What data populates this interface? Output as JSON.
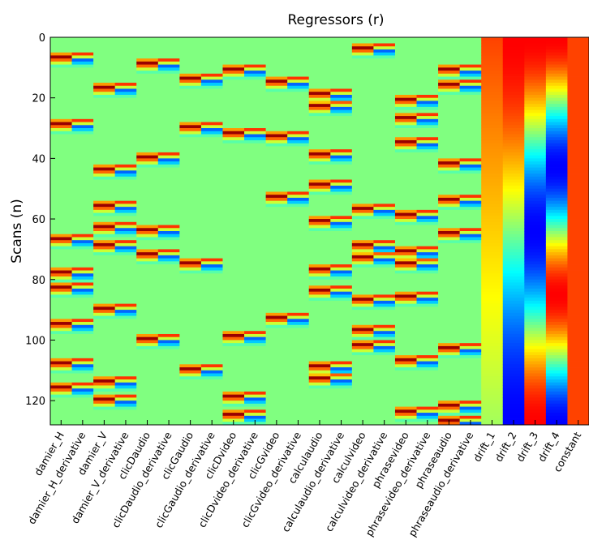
{
  "chart_data": {
    "type": "heatmap",
    "title": "Regressors (r)",
    "ylabel": "Scans (n)",
    "xlabel": "",
    "ylim": [
      0,
      128
    ],
    "y_ticks": [
      0,
      20,
      40,
      60,
      80,
      100,
      120
    ],
    "y_tick_labels": [
      "0",
      "20",
      "40",
      "60",
      "80",
      "100",
      "120"
    ],
    "colormap": "jet",
    "value_range": [
      -1,
      1
    ],
    "columns": [
      "damier_H",
      "damier_H_derivative",
      "damier_V",
      "damier_V_derivative",
      "clicDaudio",
      "clicDaudio_derivative",
      "clicGaudio",
      "clicGaudio_derivative",
      "clicDvideo",
      "clicDvideo_derivative",
      "clicGvideo",
      "clicGvideo_derivative",
      "calculaudio",
      "calculaudio_derivative",
      "calculvideo",
      "calculvideo_derivative",
      "phrasevideo",
      "phrasevideo_derivative",
      "phraseaudio",
      "phraseaudio_derivative",
      "drift_1",
      "drift_2",
      "drift_3",
      "drift_4",
      "constant"
    ],
    "event_onsets": {
      "damier_H": [
        5,
        27,
        65,
        76,
        81,
        93,
        106,
        114
      ],
      "damier_V": [
        15,
        42,
        54,
        61,
        67,
        88,
        112,
        118
      ],
      "clicDaudio": [
        7,
        38,
        62,
        70,
        98
      ],
      "clicGaudio": [
        12,
        28,
        73,
        108
      ],
      "clicDvideo": [
        9,
        30,
        97,
        117,
        123
      ],
      "clicGvideo": [
        13,
        31,
        51,
        91
      ],
      "calculaudio": [
        17,
        21,
        37,
        47,
        59,
        75,
        82,
        107,
        111
      ],
      "calculvideo": [
        2,
        55,
        67,
        71,
        85,
        95,
        100
      ],
      "phrasevideo": [
        19,
        25,
        33,
        57,
        69,
        73,
        84,
        105,
        122
      ],
      "phraseaudio": [
        9,
        14,
        40,
        52,
        63,
        101,
        120,
        125
      ]
    },
    "drift_regressors": {
      "drift_1": "linear",
      "drift_2": "cosine-2",
      "drift_3": "cosine-3",
      "drift_4": "cosine-4",
      "constant": "constant"
    }
  }
}
